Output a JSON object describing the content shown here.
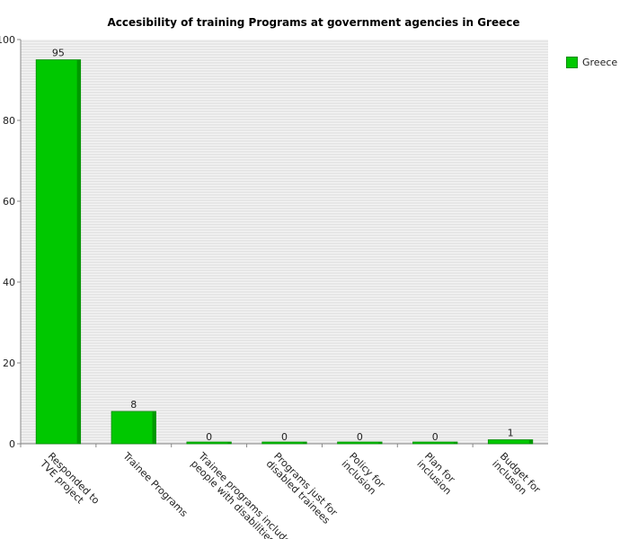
{
  "chart_data": {
    "type": "bar",
    "title": "Accesibility of training Programs at government agencies in Greece",
    "categories": [
      [
        "Responded to",
        "TVE project"
      ],
      [
        "Trainee Programs"
      ],
      [
        "Trainee programs include",
        "people with disabilities"
      ],
      [
        "Programs just for",
        "disabled trainees"
      ],
      [
        "Policy for",
        "inclusion"
      ],
      [
        "Plan for",
        "inclusion"
      ],
      [
        "Budget for",
        "inclusion"
      ]
    ],
    "series": [
      {
        "name": "Greece",
        "values": [
          95,
          8,
          0,
          0,
          0,
          0,
          1
        ]
      }
    ],
    "ylim": [
      0,
      100
    ],
    "yticks": [
      0,
      20,
      40,
      60,
      80,
      100
    ],
    "grid": true,
    "legend_position": "right",
    "colors": {
      "bar": "#00c800",
      "bar_side": "#009900",
      "bar_edge": "#0a8a0a"
    }
  }
}
